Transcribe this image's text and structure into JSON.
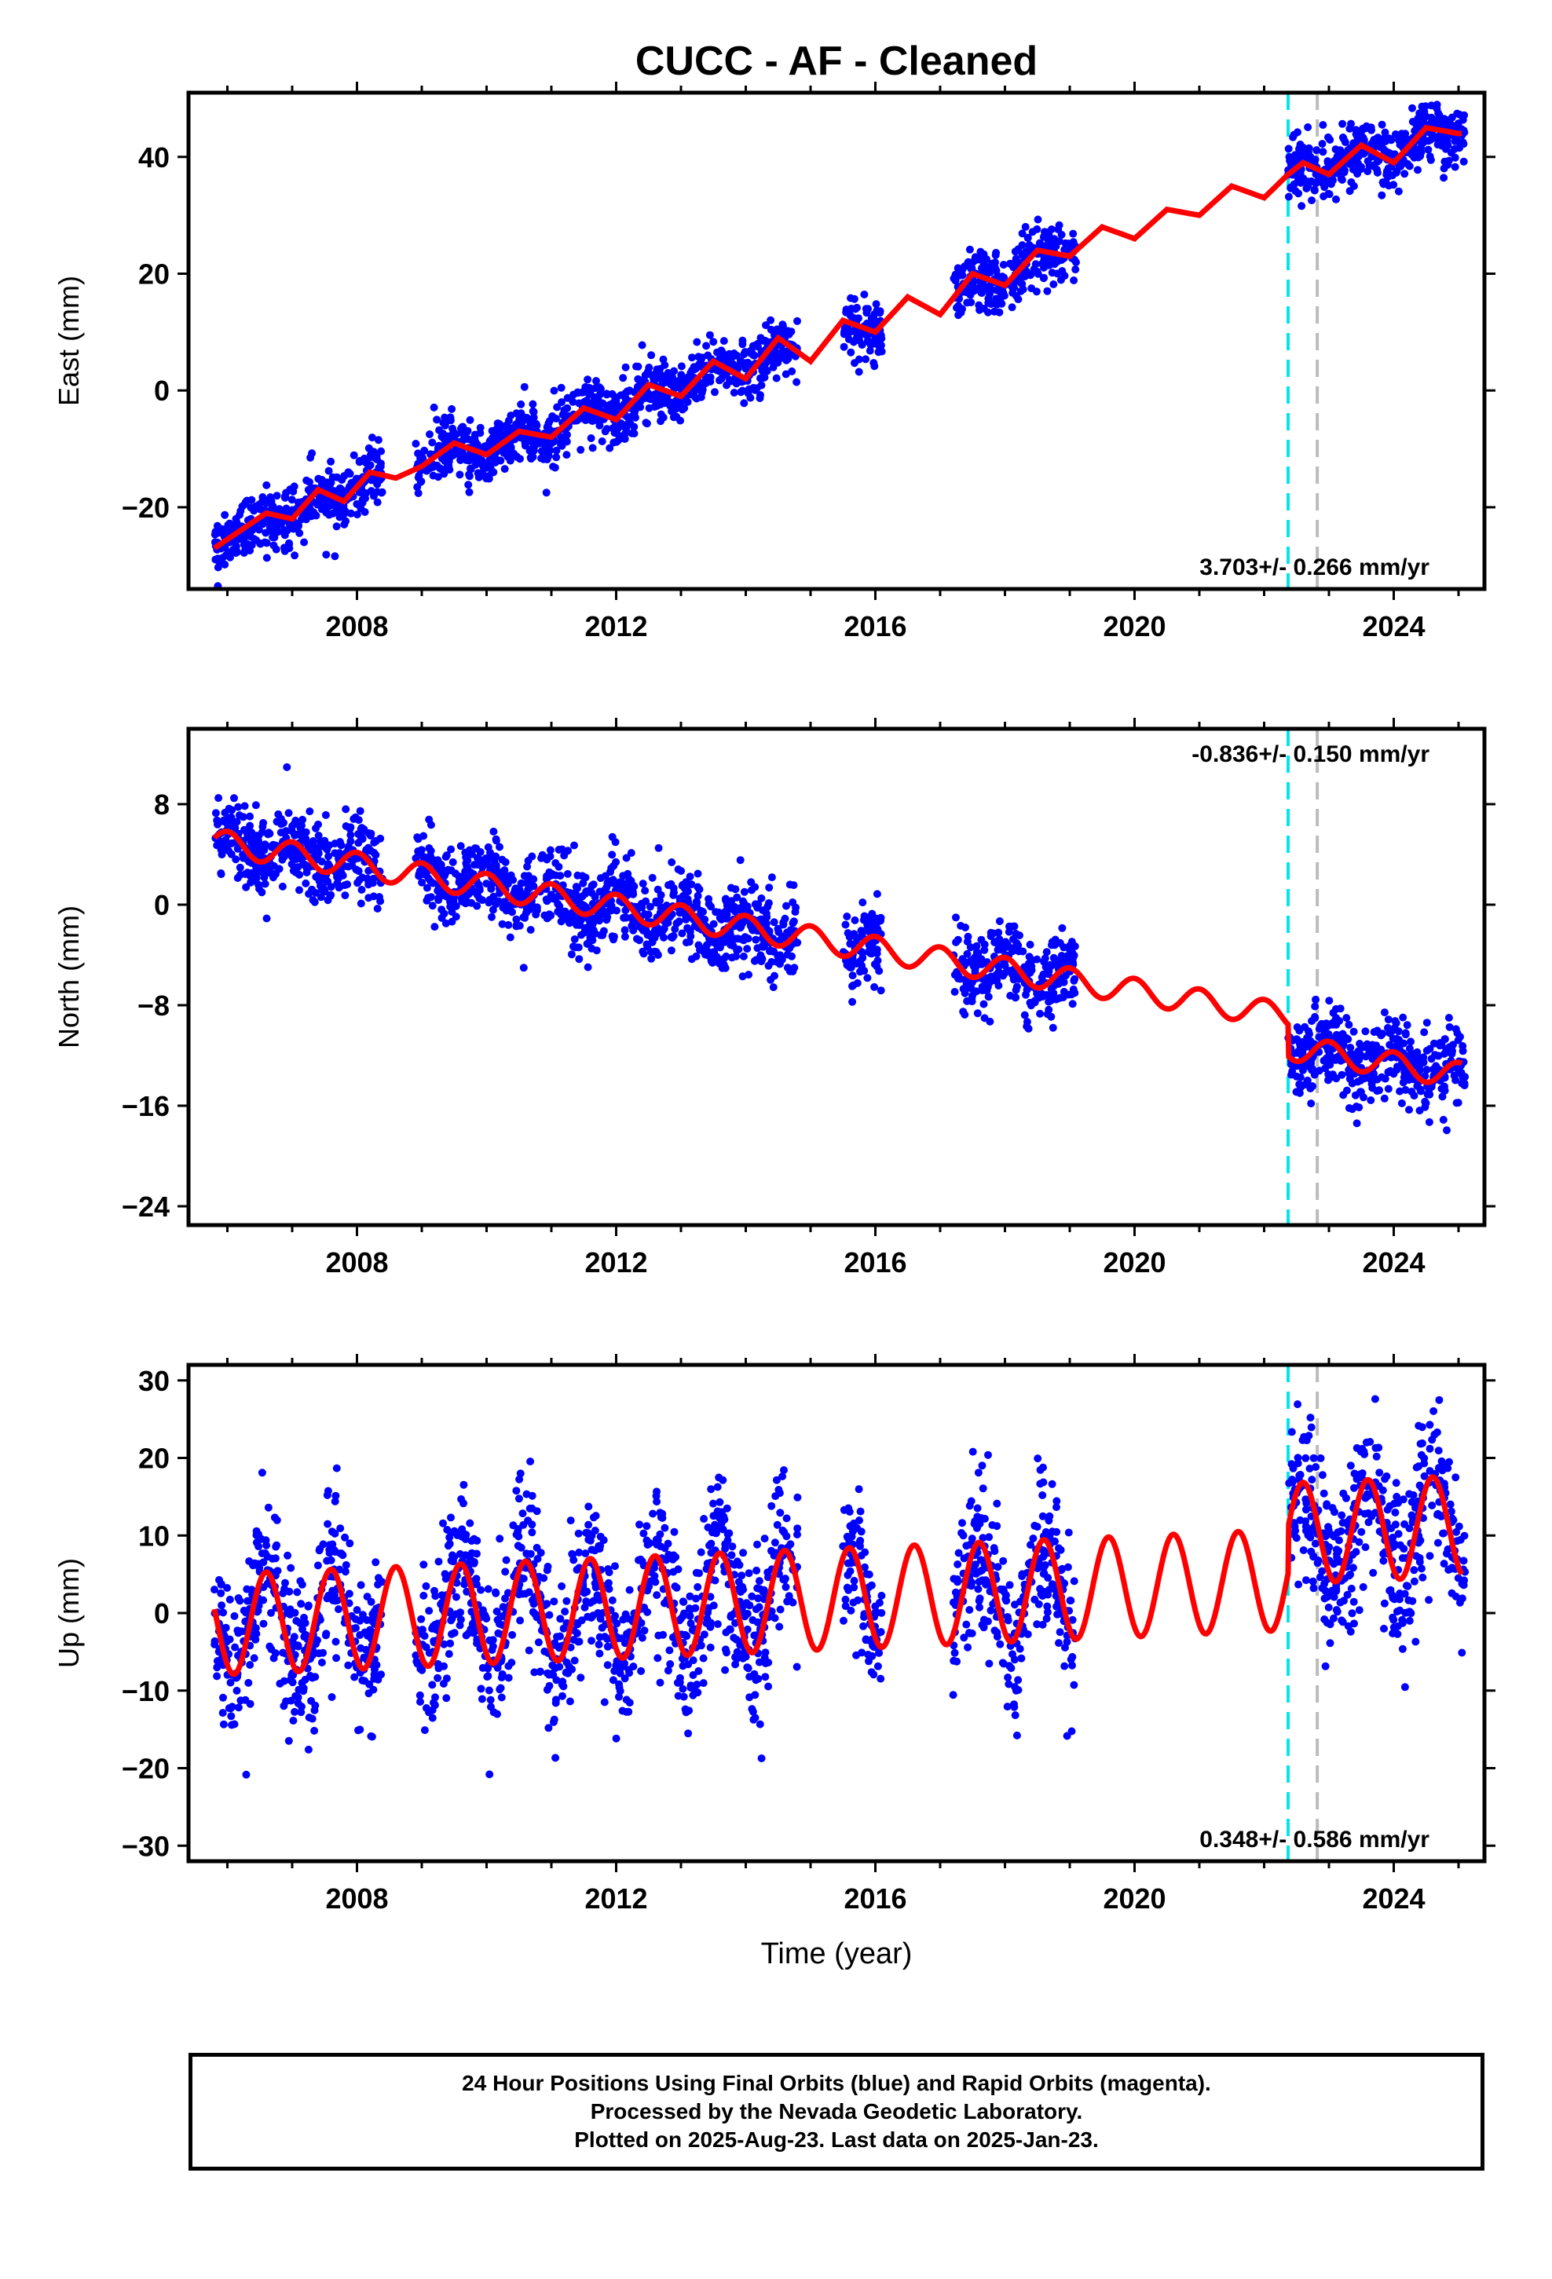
{
  "title": "CUCC  - AF - Cleaned",
  "x_label": "Time (year)",
  "x_ticks": [
    "2008",
    "2012",
    "2016",
    "2020",
    "2024"
  ],
  "colors": {
    "data": "#0000ff",
    "model": "#ff0000",
    "event_cyan": "#00e5ee",
    "event_gray": "#bbbbbb",
    "frame": "#000000"
  },
  "footer": {
    "line1": "24 Hour Positions Using Final Orbits (blue) and Rapid Orbits (magenta).",
    "line2": "Processed by the Nevada Geodetic Laboratory.",
    "line3": "Plotted on 2025-Aug-23. Last data on 2025-Jan-23."
  },
  "chart_data": [
    {
      "type": "scatter",
      "ylabel": "East (mm)",
      "xlim": [
        2005.4,
        2025.4
      ],
      "ylim": [
        -34,
        51
      ],
      "yticks": [
        -20,
        0,
        20,
        40
      ],
      "xticks": [
        2008,
        2012,
        2016,
        2020,
        2024
      ],
      "rate_label": "3.703+/- 0.266 mm/yr",
      "rate_position": "bottom-right",
      "event_lines": [
        {
          "x": 2022.37,
          "color": "cyan",
          "style": "dashed"
        },
        {
          "x": 2022.82,
          "color": "gray",
          "style": "dashed"
        }
      ],
      "model_curve": {
        "name": "model",
        "x": [
          2005.8,
          2006.2,
          2006.6,
          2007.0,
          2007.4,
          2007.8,
          2008.2,
          2008.6,
          2009.0,
          2009.5,
          2010.0,
          2010.5,
          2011.0,
          2011.5,
          2012.0,
          2012.5,
          2013.0,
          2013.5,
          2014.0,
          2014.5,
          2015.0,
          2015.5,
          2016.0,
          2016.5,
          2017.0,
          2017.5,
          2018.0,
          2018.5,
          2019.0,
          2019.5,
          2020.0,
          2020.5,
          2021.0,
          2021.5,
          2022.0,
          2022.37,
          2022.6,
          2023.0,
          2023.5,
          2024.0,
          2024.5,
          2025.0
        ],
        "y": [
          -27,
          -24,
          -21,
          -22,
          -17,
          -19,
          -14,
          -15,
          -13,
          -9,
          -11,
          -7,
          -8,
          -3,
          -5,
          1,
          -1,
          5,
          2,
          9,
          5,
          12,
          10,
          16,
          13,
          20,
          18,
          24,
          23,
          28,
          26,
          31,
          30,
          35,
          33,
          37,
          39,
          37,
          42,
          39,
          45,
          44
        ]
      },
      "observations": {
        "name": "daily positions",
        "segments": [
          {
            "x": [
              2005.8,
              2008.4
            ],
            "model_offset": 0,
            "scatter": 2.5
          },
          {
            "x": [
              2008.9,
              2014.8
            ],
            "model_offset": 0,
            "scatter": 2.5
          },
          {
            "x": [
              2015.5,
              2016.1
            ],
            "model_offset": 0,
            "scatter": 2.5
          },
          {
            "x": [
              2017.2,
              2019.1
            ],
            "model_offset": 0,
            "scatter": 2.5
          },
          {
            "x": [
              2022.37,
              2025.1
            ],
            "model_offset": 0,
            "scatter": 2.5
          }
        ]
      }
    },
    {
      "type": "scatter",
      "ylabel": "North (mm)",
      "xlim": [
        2005.4,
        2025.4
      ],
      "ylim": [
        -25.5,
        14
      ],
      "yticks": [
        -24,
        -16,
        -8,
        0,
        8
      ],
      "xticks": [
        2008,
        2012,
        2016,
        2020,
        2024
      ],
      "rate_label": "-0.836+/- 0.150 mm/yr",
      "rate_position": "top-right",
      "event_lines": [
        {
          "x": 2022.37,
          "color": "cyan",
          "style": "dashed"
        },
        {
          "x": 2022.82,
          "color": "gray",
          "style": "dashed"
        }
      ],
      "model_curve": {
        "name": "model",
        "trend": {
          "start_x": 2005.8,
          "start_y": 5.0,
          "rate": -0.836
        },
        "offset_at_event": {
          "x": 2022.37,
          "step": -2.5
        },
        "annual_amplitude": 1.0
      },
      "observations": {
        "name": "daily positions",
        "segments": [
          {
            "x": [
              2005.8,
              2008.4
            ],
            "model_offset": 0,
            "scatter": 1.6
          },
          {
            "x": [
              2008.9,
              2014.8
            ],
            "model_offset": 0,
            "scatter": 1.6
          },
          {
            "x": [
              2015.5,
              2016.1
            ],
            "model_offset": 0,
            "scatter": 1.6
          },
          {
            "x": [
              2017.2,
              2019.1
            ],
            "model_offset": 0,
            "scatter": 1.6
          },
          {
            "x": [
              2022.37,
              2025.1
            ],
            "model_offset": 0,
            "scatter": 1.6
          }
        ]
      }
    },
    {
      "type": "scatter",
      "ylabel": "Up (mm)",
      "xlim": [
        2005.4,
        2025.4
      ],
      "ylim": [
        -32,
        32
      ],
      "yticks": [
        -30,
        -20,
        -10,
        0,
        10,
        20,
        30
      ],
      "xticks": [
        2008,
        2012,
        2016,
        2020,
        2024
      ],
      "rate_label": "0.348+/- 0.586 mm/yr",
      "rate_position": "bottom-right",
      "event_lines": [
        {
          "x": 2022.37,
          "color": "cyan",
          "style": "dashed"
        },
        {
          "x": 2022.82,
          "color": "gray",
          "style": "dashed"
        }
      ],
      "model_curve": {
        "name": "model",
        "trend": {
          "start_x": 2005.8,
          "start_y": -1.5,
          "rate": 0.348
        },
        "offset_at_event": {
          "x": 2022.37,
          "step": 6.0
        },
        "annual_amplitude": 6.5,
        "annual_peak_fraction": 0.6
      },
      "observations": {
        "name": "daily positions",
        "segments": [
          {
            "x": [
              2005.8,
              2008.4
            ],
            "model_offset": 0,
            "scatter": 5.0
          },
          {
            "x": [
              2008.9,
              2014.8
            ],
            "model_offset": 0,
            "scatter": 5.0
          },
          {
            "x": [
              2015.5,
              2016.1
            ],
            "model_offset": 0,
            "scatter": 5.0
          },
          {
            "x": [
              2017.2,
              2019.1
            ],
            "model_offset": 0,
            "scatter": 5.0
          },
          {
            "x": [
              2022.37,
              2025.1
            ],
            "model_offset": 0,
            "scatter": 5.0
          }
        ]
      }
    }
  ]
}
